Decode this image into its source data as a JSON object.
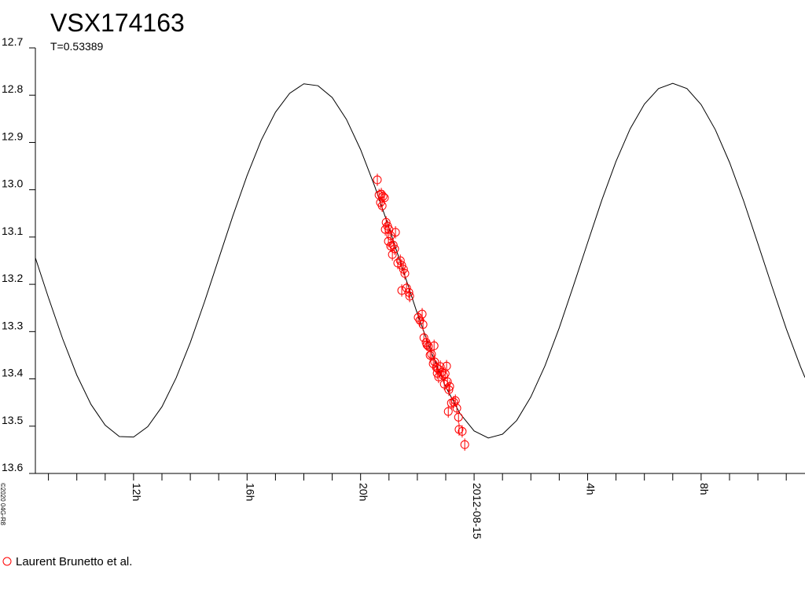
{
  "chart_data": {
    "type": "scatter",
    "title": "VSX174163",
    "subtitle": "T=0.53389",
    "copyright": "©2020 04G-R8",
    "y_inverted": true,
    "xlim": [
      -15.46,
      11.66
    ],
    "ylim": [
      12.7,
      13.6
    ],
    "yticks": [
      12.7,
      12.8,
      12.9,
      {
        "value": 13,
        "label": "13.0"
      },
      13.1,
      13.2,
      13.3,
      13.4,
      13.5,
      13.6
    ],
    "xticks": [
      {
        "value": -12,
        "label": "12h"
      },
      {
        "value": -8,
        "label": "16h"
      },
      {
        "value": -4,
        "label": "20h"
      },
      {
        "value": 0,
        "label": "2012-08-15"
      },
      {
        "value": 4,
        "label": "4h"
      },
      {
        "value": 8,
        "label": "8h"
      }
    ],
    "xminorticks": [
      -15,
      -14,
      -13,
      -11,
      -10,
      -9,
      -7,
      -6,
      -5,
      -3,
      -2,
      -1,
      1,
      2,
      3,
      5,
      6,
      7,
      9,
      10,
      11
    ],
    "curve": {
      "color": "#000000",
      "x": [
        -15.46,
        -15,
        -14.5,
        -14,
        -13.5,
        -13,
        -12.5,
        -12,
        -11.5,
        -11,
        -10.5,
        -10,
        -9.5,
        -9,
        -8.5,
        -8,
        -7.5,
        -7,
        -6.5,
        -6,
        -5.5,
        -5,
        -4.5,
        -4,
        -3.5,
        -3,
        -2.5,
        -2,
        -1.5,
        -1,
        -0.5,
        0,
        0.5,
        1,
        1.5,
        2,
        2.5,
        3,
        3.5,
        4,
        4.5,
        5,
        5.5,
        6,
        6.5,
        7,
        7.5,
        8,
        8.5,
        9,
        9.5,
        10,
        10.5,
        11,
        11.5,
        11.66
      ],
      "values": [
        13.144,
        13.228,
        13.315,
        13.392,
        13.454,
        13.498,
        13.522,
        13.523,
        13.501,
        13.459,
        13.398,
        13.323,
        13.237,
        13.146,
        13.055,
        12.97,
        12.895,
        12.836,
        12.796,
        12.776,
        12.78,
        12.805,
        12.851,
        12.915,
        12.993,
        13.08,
        13.171,
        13.262,
        13.345,
        13.417,
        13.473,
        13.51,
        13.525,
        13.517,
        13.488,
        13.438,
        13.372,
        13.292,
        13.203,
        13.112,
        13.022,
        12.94,
        12.871,
        12.819,
        12.786,
        12.775,
        12.786,
        12.82,
        12.873,
        12.942,
        13.024,
        13.114,
        13.205,
        13.294,
        13.374,
        13.397
      ]
    },
    "series": [
      {
        "name": "Laurent Brunetto et al.",
        "color": "#ff0000",
        "x": [
          -3.41,
          -3.35,
          -3.27,
          -3.21,
          -3.3,
          -3.24,
          -3.16,
          -3.1,
          -3.13,
          -3.05,
          -3.0,
          -2.94,
          -2.77,
          -3.02,
          -2.94,
          -2.85,
          -2.8,
          -2.88,
          -2.69,
          -2.6,
          -2.55,
          -2.49,
          -2.44,
          -2.55,
          -2.38,
          -2.3,
          -2.27,
          -1.97,
          -1.91,
          -1.83,
          -1.8,
          -1.77,
          -1.69,
          -1.66,
          -1.61,
          -1.55,
          -1.5,
          -1.41,
          -1.39,
          -1.44,
          -1.33,
          -1.27,
          -1.19,
          -1.14,
          -1.08,
          -1.02,
          -0.97,
          -0.94,
          -1.05,
          -0.89,
          -0.86,
          -0.8,
          -0.72,
          -0.66,
          -0.61,
          -0.55,
          -0.91,
          -0.53,
          -0.42,
          -0.33,
          -1.3,
          -1.25
        ],
        "values": [
          12.979,
          13.011,
          13.009,
          13.014,
          13.027,
          13.034,
          13.017,
          13.069,
          13.084,
          13.077,
          13.084,
          13.097,
          13.09,
          13.109,
          13.119,
          13.117,
          13.125,
          13.137,
          13.155,
          13.15,
          13.16,
          13.168,
          13.177,
          13.213,
          13.208,
          13.217,
          13.225,
          13.27,
          13.276,
          13.263,
          13.285,
          13.313,
          13.323,
          13.328,
          13.331,
          13.35,
          13.348,
          13.33,
          13.364,
          13.368,
          13.376,
          13.379,
          13.374,
          13.386,
          13.393,
          13.389,
          13.373,
          13.406,
          13.411,
          13.423,
          13.416,
          13.451,
          13.449,
          13.446,
          13.462,
          13.481,
          13.469,
          13.507,
          13.511,
          13.539,
          13.388,
          13.396
        ],
        "errors": [
          0.013,
          0.013,
          0.013,
          0.013,
          0.013,
          0.013,
          0.013,
          0.013,
          0.013,
          0.013,
          0.013,
          0.013,
          0.013,
          0.013,
          0.013,
          0.013,
          0.013,
          0.013,
          0.013,
          0.013,
          0.013,
          0.013,
          0.013,
          0.013,
          0.013,
          0.013,
          0.013,
          0.013,
          0.013,
          0.013,
          0.013,
          0.013,
          0.013,
          0.013,
          0.013,
          0.013,
          0.013,
          0.013,
          0.013,
          0.013,
          0.013,
          0.013,
          0.013,
          0.013,
          0.013,
          0.013,
          0.013,
          0.013,
          0.013,
          0.013,
          0.013,
          0.013,
          0.013,
          0.013,
          0.013,
          0.013,
          0.013,
          0.013,
          0.013,
          0.013,
          0.013,
          0.013
        ]
      }
    ]
  }
}
